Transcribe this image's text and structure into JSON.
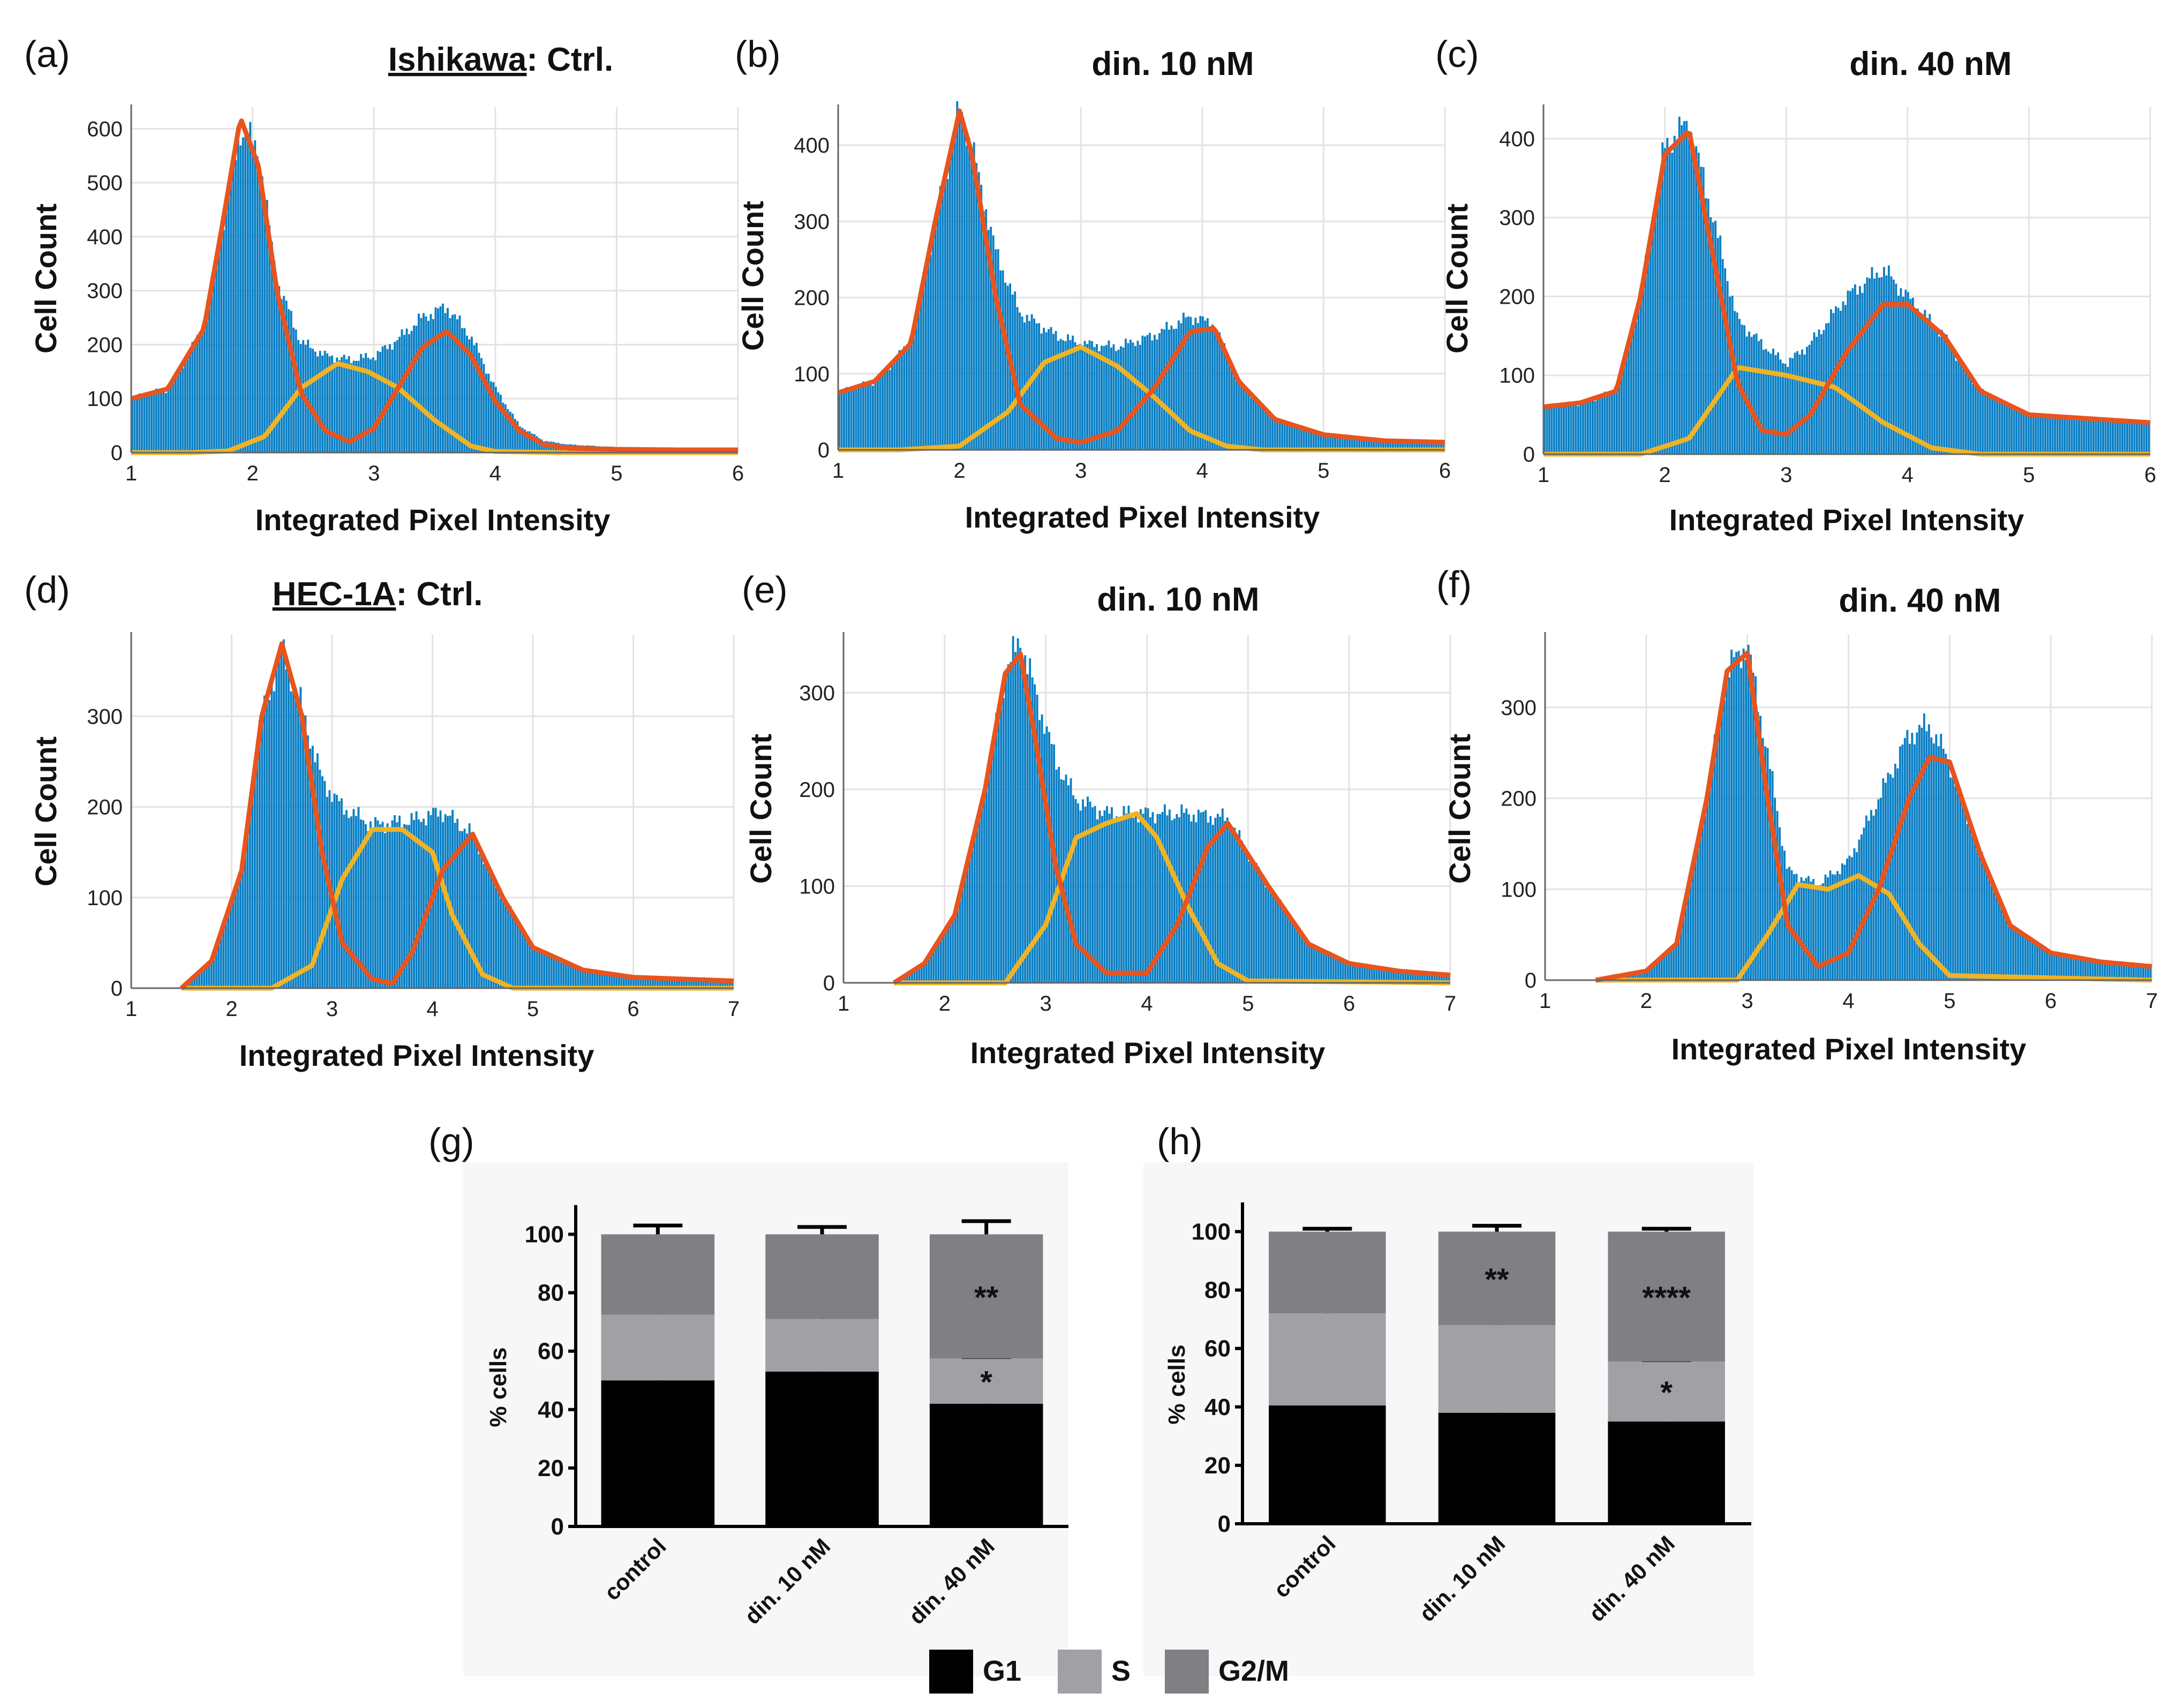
{
  "colors": {
    "bars": "#0a7fc4",
    "g1_fit": "#e8541e",
    "s_fit": "#f0b323",
    "grid": "#e3e3e3",
    "g1_bar": "#000000",
    "s_bar": "#a0a0a5",
    "g2m_bar": "#808084",
    "panel_bg": "#f7f7f7"
  },
  "chart_data": [
    {
      "type": "area",
      "panel": "(a)",
      "title_underlined": "Ishikawa",
      "title_rest": ": Ctrl.",
      "xlabel": "Integrated Pixel Intensity",
      "ylabel": "Cell Count",
      "xlim": [
        1,
        6
      ],
      "ylim": [
        0,
        640
      ],
      "xticks": [
        1,
        2,
        3,
        4,
        5,
        6
      ],
      "yticks": [
        0,
        100,
        200,
        300,
        400,
        500,
        600
      ],
      "histogram": {
        "x": [
          1,
          1.3,
          1.6,
          1.75,
          1.9,
          2.05,
          2.2,
          2.4,
          2.6,
          2.8,
          3.0,
          3.2,
          3.4,
          3.6,
          3.8,
          4.0,
          4.2,
          4.4,
          4.6,
          5.0,
          5.5,
          6.0
        ],
        "y": [
          100,
          118,
          230,
          420,
          600,
          560,
          320,
          205,
          180,
          172,
          178,
          210,
          250,
          270,
          215,
          120,
          50,
          22,
          15,
          10,
          8,
          8
        ]
      },
      "g1_fit": {
        "x": [
          1,
          1.3,
          1.6,
          1.75,
          1.9,
          2.05,
          2.2,
          2.4,
          2.6,
          2.8,
          3.0,
          3.2,
          3.4,
          3.6,
          3.8,
          4.0,
          4.2,
          4.4,
          4.6,
          5.0,
          5.5,
          6.0
        ],
        "y": [
          100,
          118,
          230,
          420,
          620,
          530,
          300,
          110,
          40,
          20,
          45,
          120,
          195,
          225,
          180,
          95,
          40,
          15,
          8,
          6,
          5,
          5
        ]
      },
      "s_fit": {
        "x": [
          1,
          1.5,
          1.8,
          2.1,
          2.4,
          2.7,
          2.95,
          3.2,
          3.5,
          3.8,
          4.0,
          4.5,
          6.0
        ],
        "y": [
          0,
          0,
          3,
          30,
          120,
          165,
          150,
          120,
          60,
          12,
          2,
          0,
          0
        ]
      }
    },
    {
      "type": "area",
      "panel": "(b)",
      "title": "din. 10 nM",
      "xlabel": "Integrated Pixel Intensity",
      "ylabel": "Cell Count",
      "xlim": [
        1,
        6
      ],
      "ylim": [
        0,
        450
      ],
      "xticks": [
        1,
        2,
        3,
        4,
        5,
        6
      ],
      "yticks": [
        0,
        100,
        200,
        300,
        400
      ],
      "histogram": {
        "x": [
          1,
          1.3,
          1.6,
          1.8,
          2.0,
          2.1,
          2.3,
          2.5,
          2.8,
          3.0,
          3.3,
          3.6,
          3.9,
          4.1,
          4.3,
          4.6,
          5.0,
          5.5,
          6.0
        ],
        "y": [
          75,
          90,
          140,
          300,
          445,
          400,
          260,
          180,
          150,
          140,
          135,
          150,
          175,
          165,
          90,
          40,
          20,
          12,
          10
        ]
      },
      "g1_fit": {
        "x": [
          1,
          1.3,
          1.6,
          1.8,
          2.0,
          2.1,
          2.3,
          2.5,
          2.8,
          3.0,
          3.3,
          3.6,
          3.9,
          4.1,
          4.3,
          4.6,
          5.0,
          5.5,
          6.0
        ],
        "y": [
          75,
          90,
          140,
          300,
          445,
          390,
          200,
          60,
          15,
          10,
          25,
          80,
          155,
          160,
          90,
          40,
          20,
          12,
          10
        ]
      },
      "s_fit": {
        "x": [
          1,
          1.5,
          2.0,
          2.4,
          2.7,
          3.0,
          3.3,
          3.6,
          3.9,
          4.2,
          4.5,
          6.0
        ],
        "y": [
          0,
          0,
          5,
          50,
          115,
          135,
          110,
          70,
          25,
          5,
          0,
          0
        ]
      }
    },
    {
      "type": "area",
      "panel": "(c)",
      "title": "din. 40 nM",
      "xlabel": "Integrated Pixel Intensity",
      "ylabel": "Cell Count",
      "xlim": [
        1,
        6
      ],
      "ylim": [
        0,
        440
      ],
      "xticks": [
        1,
        2,
        3,
        4,
        5,
        6
      ],
      "yticks": [
        0,
        100,
        200,
        300,
        400
      ],
      "histogram": {
        "x": [
          1,
          1.3,
          1.6,
          1.8,
          2.0,
          2.2,
          2.4,
          2.6,
          2.8,
          3.0,
          3.2,
          3.5,
          3.8,
          4.0,
          4.3,
          4.6,
          5.0,
          5.5,
          6.0
        ],
        "y": [
          60,
          65,
          80,
          200,
          390,
          420,
          300,
          170,
          140,
          115,
          140,
          200,
          235,
          200,
          150,
          80,
          50,
          45,
          40
        ]
      },
      "g1_fit": {
        "x": [
          1,
          1.3,
          1.6,
          1.8,
          2.0,
          2.2,
          2.4,
          2.6,
          2.8,
          3.0,
          3.2,
          3.5,
          3.8,
          4.0,
          4.3,
          4.6,
          5.0,
          5.5,
          6.0
        ],
        "y": [
          60,
          65,
          80,
          200,
          380,
          410,
          250,
          90,
          30,
          25,
          50,
          130,
          190,
          190,
          150,
          80,
          50,
          45,
          40
        ]
      },
      "s_fit": {
        "x": [
          1,
          1.8,
          2.2,
          2.6,
          3.0,
          3.4,
          3.8,
          4.2,
          4.6,
          6.0
        ],
        "y": [
          0,
          0,
          20,
          110,
          100,
          85,
          40,
          8,
          0,
          0
        ]
      }
    },
    {
      "type": "area",
      "panel": "(d)",
      "title_underlined": "HEC-1A",
      "title_rest": ": Ctrl.",
      "xlabel": "Integrated Pixel Intensity",
      "ylabel": "Cell Count",
      "xlim": [
        1,
        7
      ],
      "ylim": [
        0,
        390
      ],
      "xticks": [
        1,
        2,
        3,
        4,
        5,
        6,
        7
      ],
      "yticks": [
        0,
        100,
        200,
        300
      ],
      "histogram": {
        "x": [
          1.5,
          1.8,
          2.1,
          2.3,
          2.5,
          2.7,
          2.9,
          3.1,
          3.4,
          3.8,
          4.1,
          4.4,
          4.7,
          5.0,
          5.5,
          6.0,
          6.5,
          7.0
        ],
        "y": [
          0,
          30,
          130,
          300,
          375,
          310,
          230,
          200,
          180,
          185,
          195,
          170,
          100,
          45,
          20,
          12,
          10,
          8
        ]
      },
      "g1_fit": {
        "x": [
          1.5,
          1.8,
          2.1,
          2.3,
          2.5,
          2.7,
          2.9,
          3.1,
          3.4,
          3.6,
          3.8,
          4.1,
          4.4,
          4.7,
          5.0,
          5.5,
          6.0,
          6.5,
          7.0
        ],
        "y": [
          0,
          30,
          130,
          300,
          380,
          300,
          150,
          50,
          10,
          5,
          40,
          130,
          170,
          100,
          45,
          20,
          12,
          10,
          8
        ]
      },
      "s_fit": {
        "x": [
          1.5,
          2.4,
          2.8,
          3.1,
          3.4,
          3.7,
          4.0,
          4.2,
          4.5,
          4.8,
          7.0
        ],
        "y": [
          0,
          0,
          25,
          120,
          175,
          175,
          150,
          80,
          15,
          0,
          0
        ]
      }
    },
    {
      "type": "area",
      "panel": "(e)",
      "title": "din. 10 nM",
      "xlabel": "Integrated Pixel Intensity",
      "ylabel": "Cell Count",
      "xlim": [
        1,
        7
      ],
      "ylim": [
        0,
        360
      ],
      "xticks": [
        1,
        2,
        3,
        4,
        5,
        6,
        7
      ],
      "yticks": [
        0,
        100,
        200,
        300
      ],
      "histogram": {
        "x": [
          1.5,
          1.8,
          2.1,
          2.4,
          2.6,
          2.75,
          2.9,
          3.1,
          3.3,
          3.6,
          4.0,
          4.4,
          4.8,
          5.2,
          5.6,
          6.0,
          6.5,
          7.0
        ],
        "y": [
          0,
          20,
          70,
          200,
          320,
          355,
          300,
          230,
          190,
          175,
          175,
          175,
          170,
          100,
          40,
          20,
          12,
          8
        ]
      },
      "g1_fit": {
        "x": [
          1.5,
          1.8,
          2.1,
          2.4,
          2.6,
          2.75,
          2.9,
          3.1,
          3.3,
          3.6,
          4.0,
          4.3,
          4.6,
          4.8,
          5.2,
          5.6,
          6.0,
          6.5,
          7.0
        ],
        "y": [
          0,
          20,
          70,
          200,
          320,
          340,
          250,
          120,
          40,
          10,
          10,
          60,
          140,
          165,
          100,
          40,
          20,
          12,
          8
        ]
      },
      "s_fit": {
        "x": [
          1.5,
          2.6,
          3.0,
          3.3,
          3.6,
          3.9,
          4.1,
          4.4,
          4.7,
          5.0,
          7.0
        ],
        "y": [
          0,
          0,
          60,
          150,
          165,
          175,
          150,
          80,
          20,
          2,
          0
        ]
      }
    },
    {
      "type": "area",
      "panel": "(f)",
      "title": "din. 40 nM",
      "xlabel": "Integrated Pixel Intensity",
      "ylabel": "Cell Count",
      "xlim": [
        1,
        7
      ],
      "ylim": [
        0,
        380
      ],
      "xticks": [
        1,
        2,
        3,
        4,
        5,
        6,
        7
      ],
      "yticks": [
        0,
        100,
        200,
        300
      ],
      "histogram": {
        "x": [
          1.5,
          2.0,
          2.3,
          2.6,
          2.8,
          3.0,
          3.2,
          3.4,
          3.7,
          4.0,
          4.3,
          4.6,
          4.8,
          5.0,
          5.3,
          5.6,
          6.0,
          6.5,
          7.0
        ],
        "y": [
          0,
          10,
          40,
          200,
          340,
          370,
          250,
          120,
          105,
          130,
          200,
          270,
          280,
          240,
          140,
          60,
          30,
          20,
          15
        ]
      },
      "g1_fit": {
        "x": [
          1.5,
          2.0,
          2.3,
          2.6,
          2.8,
          3.0,
          3.2,
          3.4,
          3.7,
          4.0,
          4.3,
          4.6,
          4.8,
          5.0,
          5.3,
          5.6,
          6.0,
          6.5,
          7.0
        ],
        "y": [
          0,
          10,
          40,
          200,
          340,
          360,
          200,
          60,
          15,
          30,
          100,
          200,
          245,
          240,
          140,
          60,
          30,
          20,
          15
        ]
      },
      "s_fit": {
        "x": [
          1.5,
          2.9,
          3.2,
          3.5,
          3.8,
          4.1,
          4.4,
          4.7,
          5.0,
          7.0
        ],
        "y": [
          0,
          0,
          50,
          105,
          100,
          115,
          95,
          40,
          5,
          0
        ]
      }
    },
    {
      "type": "bar",
      "panel": "(g)",
      "stacked": true,
      "ylabel": "% cells",
      "categories": [
        "control",
        "din. 10 nM",
        "din. 40 nM"
      ],
      "ylim": [
        0,
        110
      ],
      "yticks": [
        0,
        20,
        40,
        60,
        80,
        100
      ],
      "series": [
        {
          "name": "G1",
          "values": [
            50,
            53,
            42
          ],
          "errors": [
            2.5,
            3.5,
            4.5
          ],
          "annotations": [
            "",
            "",
            ""
          ]
        },
        {
          "name": "S",
          "values": [
            22.5,
            18,
            15.5
          ],
          "errors": [
            2,
            3,
            0.5
          ],
          "annotations": [
            "",
            "",
            "*"
          ]
        },
        {
          "name": "G2/M",
          "values": [
            27.5,
            29,
            42.5
          ],
          "errors": [
            3,
            2.5,
            4.5
          ],
          "annotations": [
            "",
            "",
            "**"
          ]
        }
      ]
    },
    {
      "type": "bar",
      "panel": "(h)",
      "stacked": true,
      "ylabel": "% cells",
      "categories": [
        "control",
        "din. 10 nM",
        "din. 40 nM"
      ],
      "ylim": [
        0,
        110
      ],
      "yticks": [
        0,
        20,
        40,
        60,
        80,
        100
      ],
      "series": [
        {
          "name": "G1",
          "values": [
            40.5,
            38,
            35
          ],
          "errors": [
            5.5,
            3,
            1
          ],
          "annotations": [
            "",
            "",
            ""
          ]
        },
        {
          "name": "S",
          "values": [
            31.5,
            30,
            20.5
          ],
          "errors": [
            5.5,
            4.5,
            0.5
          ],
          "annotations": [
            "",
            "",
            "*"
          ]
        },
        {
          "name": "G2/M",
          "values": [
            28,
            32,
            44.5
          ],
          "errors": [
            1,
            2,
            1
          ],
          "annotations": [
            "",
            "**",
            "****"
          ]
        }
      ]
    }
  ],
  "legend": [
    "G1",
    "S",
    "G2/M"
  ]
}
